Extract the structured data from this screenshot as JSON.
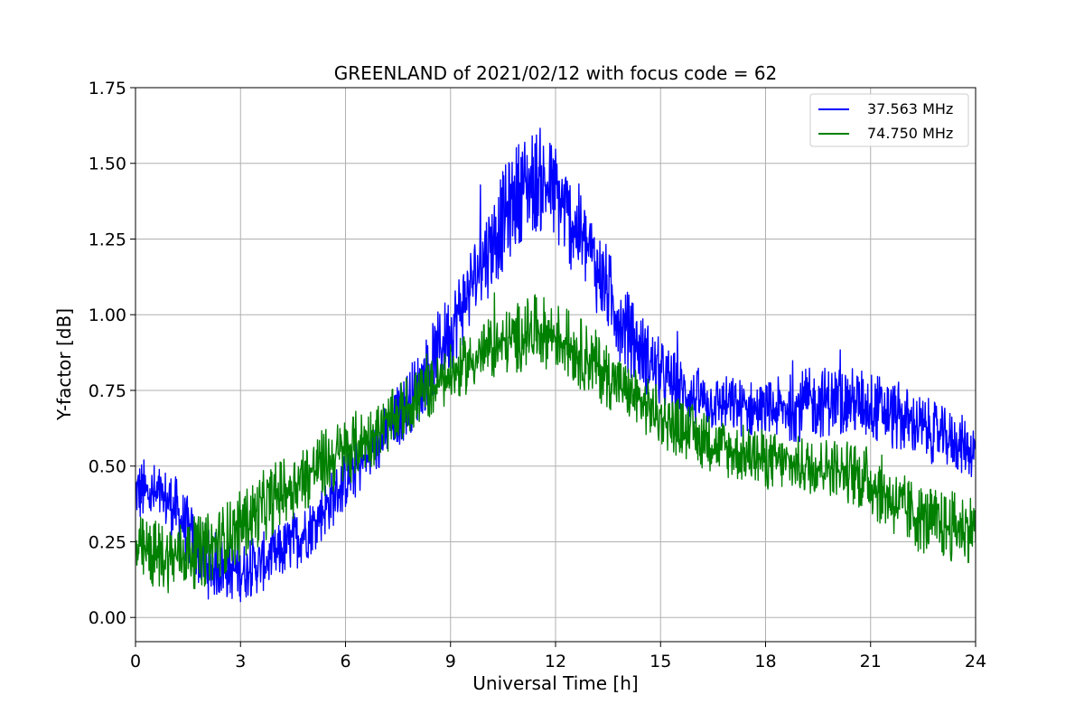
{
  "chart_data": {
    "type": "line",
    "title": "GREENLAND of 2021/02/12 with focus code = 62",
    "xlabel": "Universal Time [h]",
    "ylabel": "Y-factor [dB]",
    "xlim": [
      0,
      24
    ],
    "ylim": [
      -0.08,
      1.75
    ],
    "xticks": [
      0,
      3,
      6,
      9,
      12,
      15,
      18,
      21,
      24
    ],
    "xtick_labels": [
      "0",
      "3",
      "6",
      "9",
      "12",
      "15",
      "18",
      "21",
      "24"
    ],
    "yticks": [
      0.0,
      0.25,
      0.5,
      0.75,
      1.0,
      1.25,
      1.5,
      1.75
    ],
    "ytick_labels": [
      "0.00",
      "0.25",
      "0.50",
      "0.75",
      "1.00",
      "1.25",
      "1.50",
      "1.75"
    ],
    "grid": true,
    "legend_position": "top-right",
    "series": [
      {
        "name": "37.563 MHz",
        "color": "#0000ff",
        "x": [
          0,
          1,
          2,
          3,
          4,
          5,
          6,
          7,
          8,
          9,
          10,
          11,
          11.5,
          12,
          13,
          14,
          15,
          16,
          17,
          18,
          19,
          20,
          21,
          22,
          23,
          24
        ],
        "y_center": [
          0.42,
          0.38,
          0.18,
          0.15,
          0.2,
          0.3,
          0.45,
          0.58,
          0.75,
          0.95,
          1.2,
          1.42,
          1.45,
          1.4,
          1.2,
          0.95,
          0.8,
          0.72,
          0.7,
          0.68,
          0.7,
          0.72,
          0.7,
          0.65,
          0.6,
          0.55
        ],
        "y_spread": [
          0.12,
          0.12,
          0.12,
          0.1,
          0.1,
          0.1,
          0.1,
          0.1,
          0.12,
          0.14,
          0.16,
          0.18,
          0.18,
          0.18,
          0.16,
          0.14,
          0.12,
          0.1,
          0.1,
          0.1,
          0.12,
          0.12,
          0.12,
          0.12,
          0.1,
          0.1
        ]
      },
      {
        "name": "74.750 MHz",
        "color": "#008000",
        "x": [
          0,
          1,
          2,
          3,
          4,
          5,
          6,
          7,
          8,
          9,
          10,
          11,
          11.5,
          12,
          13,
          14,
          15,
          16,
          17,
          18,
          19,
          20,
          21,
          22,
          23,
          24
        ],
        "y_center": [
          0.22,
          0.2,
          0.22,
          0.3,
          0.4,
          0.48,
          0.55,
          0.62,
          0.72,
          0.8,
          0.88,
          0.93,
          0.95,
          0.93,
          0.85,
          0.75,
          0.66,
          0.6,
          0.55,
          0.52,
          0.5,
          0.5,
          0.45,
          0.35,
          0.3,
          0.3
        ],
        "y_spread": [
          0.12,
          0.12,
          0.12,
          0.12,
          0.12,
          0.12,
          0.12,
          0.1,
          0.1,
          0.1,
          0.1,
          0.12,
          0.12,
          0.12,
          0.12,
          0.1,
          0.1,
          0.1,
          0.1,
          0.1,
          0.1,
          0.1,
          0.12,
          0.12,
          0.12,
          0.12
        ]
      }
    ]
  }
}
